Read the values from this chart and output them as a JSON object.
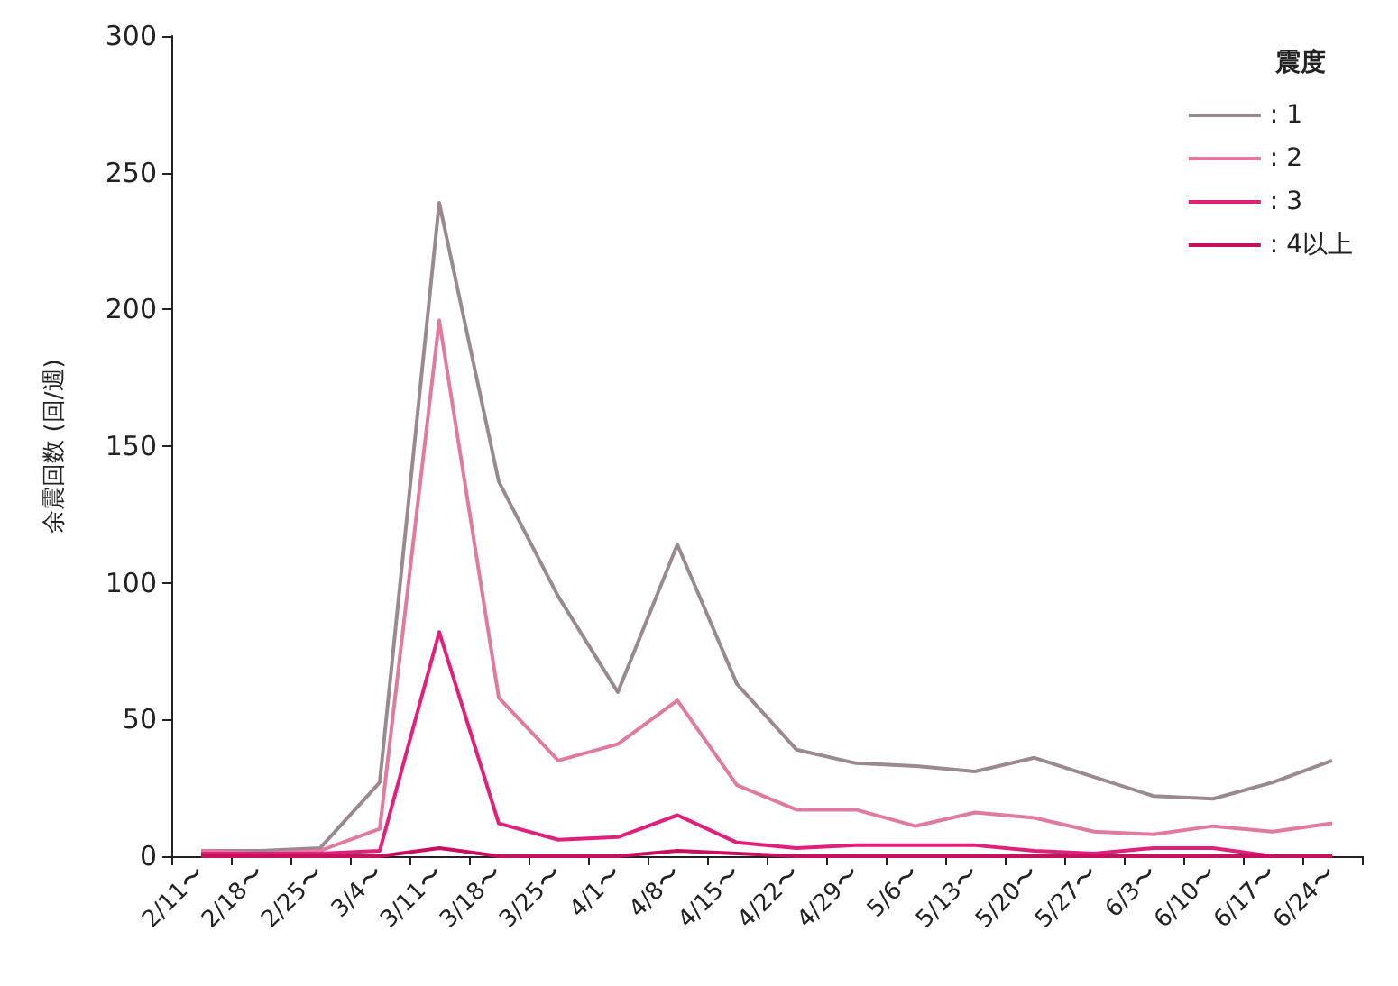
{
  "chart_data": {
    "type": "line",
    "ylabel": "余震回数 (回/週)",
    "legend_title": "震度",
    "categories": [
      "2/11〜",
      "2/18〜",
      "2/25〜",
      "3/4〜",
      "3/11〜",
      "3/18〜",
      "3/25〜",
      "4/1〜",
      "4/8〜",
      "4/15〜",
      "4/22〜",
      "4/29〜",
      "5/6〜",
      "5/13〜",
      "5/20〜",
      "5/27〜",
      "6/3〜",
      "6/10〜",
      "6/17〜",
      "6/24〜"
    ],
    "series": [
      {
        "name": ": 1",
        "color": "#9a8a90",
        "values": [
          2,
          2,
          3,
          27,
          239,
          137,
          95,
          60,
          114,
          63,
          39,
          34,
          33,
          31,
          36,
          29,
          22,
          21,
          27,
          35
        ]
      },
      {
        "name": ": 2",
        "color": "#e07aa0",
        "values": [
          2,
          1,
          2,
          10,
          196,
          58,
          35,
          41,
          57,
          26,
          17,
          17,
          11,
          16,
          14,
          9,
          8,
          11,
          9,
          12
        ]
      },
      {
        "name": ": 3",
        "color": "#e0207a",
        "values": [
          1,
          1,
          1,
          2,
          82,
          12,
          6,
          7,
          15,
          5,
          3,
          4,
          4,
          4,
          2,
          1,
          3,
          3,
          0,
          0
        ]
      },
      {
        "name": ": 4以上",
        "color": "#c8105e",
        "values": [
          0,
          0,
          0,
          0,
          3,
          0,
          0,
          0,
          2,
          1,
          0,
          0,
          0,
          0,
          0,
          0,
          0,
          0,
          0,
          0
        ]
      }
    ],
    "ylim": [
      0,
      300
    ],
    "yticks": [
      0,
      50,
      100,
      150,
      200,
      250,
      300
    ],
    "grid": false,
    "legend": "top right",
    "marker": "none",
    "line_style": "solid"
  }
}
